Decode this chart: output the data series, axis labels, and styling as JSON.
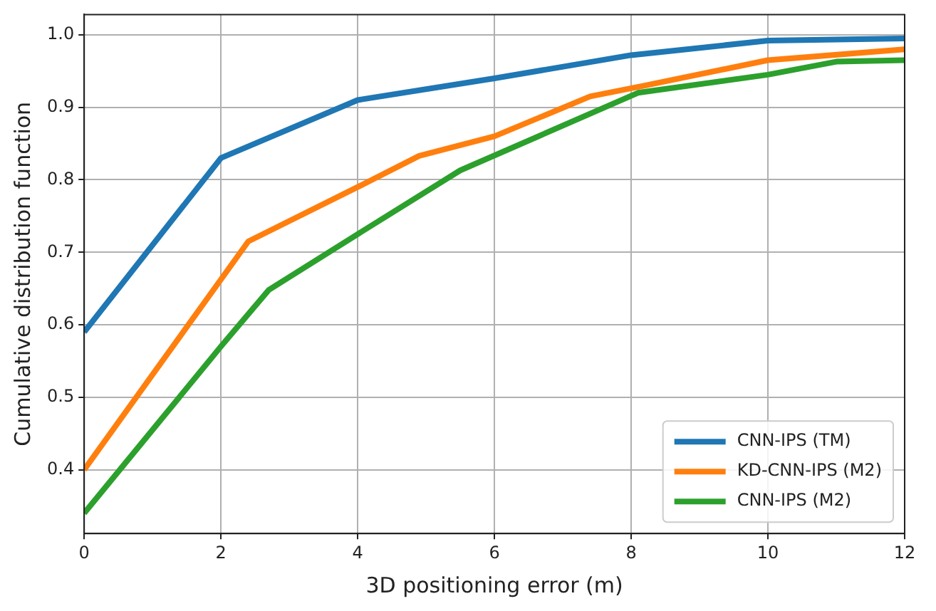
{
  "chart_data": {
    "type": "line",
    "xlabel": "3D positioning error (m)",
    "ylabel": "Cumulative distribution function",
    "xlim": [
      0,
      12
    ],
    "xticks": [
      0,
      2,
      4,
      6,
      8,
      10,
      12
    ],
    "ylim": [
      0.312,
      1.028
    ],
    "yticks": [
      0.4,
      0.5,
      0.6,
      0.7,
      0.8,
      0.9,
      {
        "value": 1,
        "label": "1.0"
      }
    ],
    "grid": true,
    "legend": "bottom right",
    "marker": "none",
    "line_style": "solid",
    "series": [
      {
        "name": "CNN-IPS (TM)",
        "color": "#1f77b4",
        "x": [
          0,
          2,
          4,
          6,
          8,
          10,
          12
        ],
        "values": [
          0.59,
          0.83,
          0.91,
          0.94,
          0.972,
          0.992,
          0.995
        ]
      },
      {
        "name": "KD-CNN-IPS (M2)",
        "color": "#ff7f0e",
        "x": [
          0,
          2.4,
          4,
          4.9,
          6,
          7.4,
          8.2,
          10,
          12
        ],
        "values": [
          0.4,
          0.715,
          0.79,
          0.833,
          0.86,
          0.915,
          0.93,
          0.965,
          0.98
        ]
      },
      {
        "name": "CNN-IPS (M2)",
        "color": "#2ca02c",
        "x": [
          0,
          2,
          2.7,
          4,
          5.5,
          8.1,
          10,
          11,
          12
        ],
        "values": [
          0.34,
          0.57,
          0.648,
          0.725,
          0.813,
          0.92,
          0.945,
          0.963,
          0.965
        ]
      }
    ]
  }
}
